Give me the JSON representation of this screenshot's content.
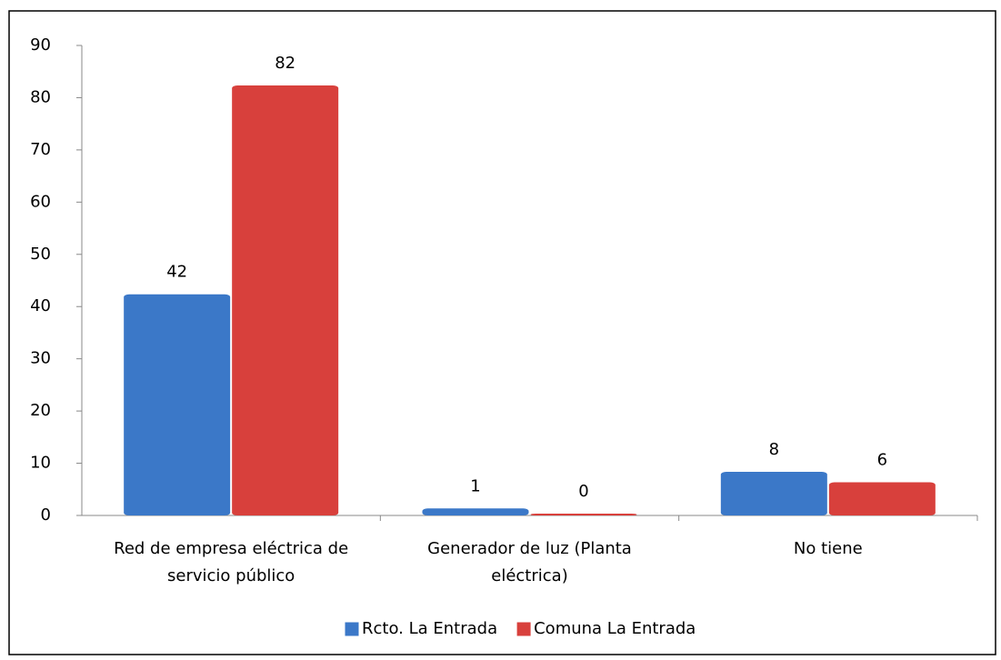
{
  "chart_data": {
    "type": "bar",
    "categories": [
      "Red de empresa eléctrica de servicio público",
      "Generador de luz (Planta eléctrica)",
      "No tiene"
    ],
    "series": [
      {
        "name": "Rcto. La Entrada",
        "color": "#3b78c8",
        "values": [
          42,
          1,
          8
        ]
      },
      {
        "name": "Comuna La Entrada",
        "color": "#d8403c",
        "values": [
          82,
          0,
          6
        ]
      }
    ],
    "ylim": [
      0,
      90
    ],
    "yticks": [
      0,
      10,
      20,
      30,
      40,
      50,
      60,
      70,
      80,
      90
    ],
    "grid": false,
    "legend": "bottom"
  }
}
